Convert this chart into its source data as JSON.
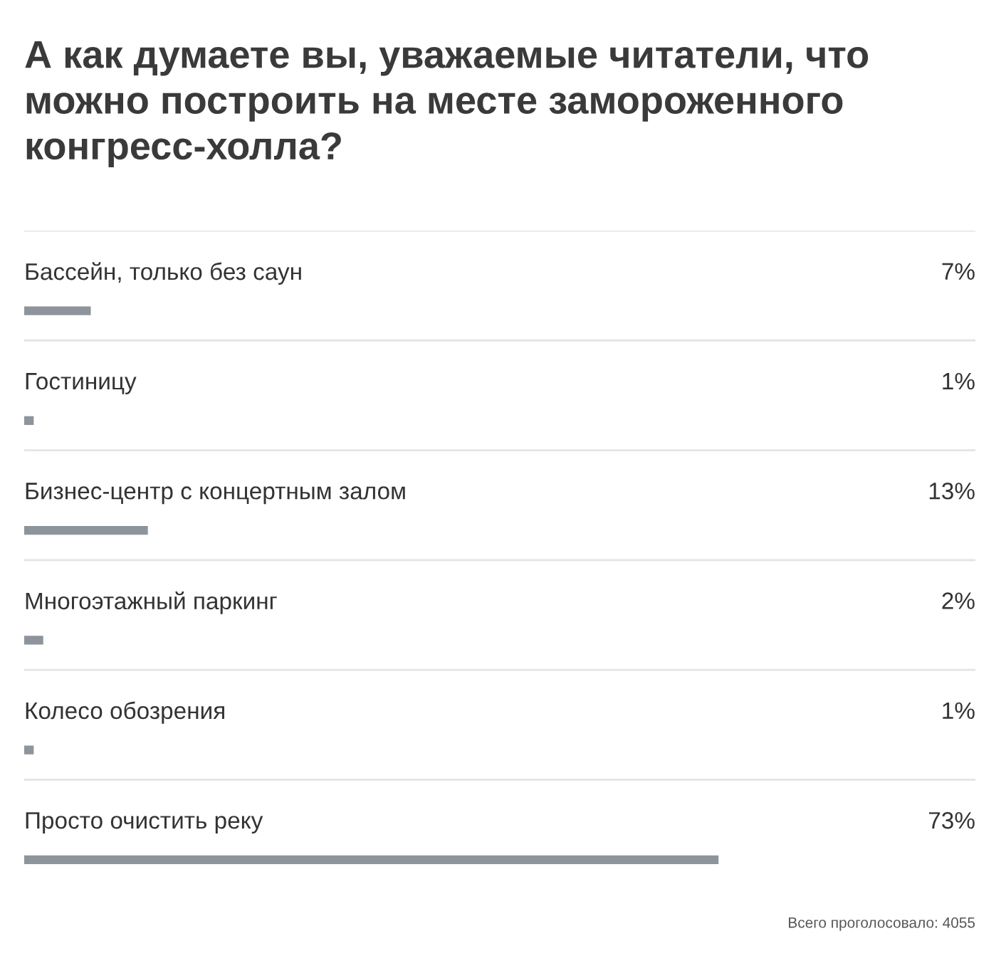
{
  "chart_data": {
    "type": "bar",
    "orientation": "horizontal",
    "title": "А как думаете вы, уважаемые читатели, что можно построить на месте замороженного конгресс-холла?",
    "categories": [
      "Бассейн, только без саун",
      "Гостиницу",
      "Бизнес-центр с концертным залом",
      "Многоэтажный паркинг",
      "Колесо обозрения",
      "Просто очистить реку"
    ],
    "values": [
      7,
      1,
      13,
      2,
      1,
      73
    ],
    "value_labels": [
      "7%",
      "1%",
      "13%",
      "2%",
      "1%",
      "73%"
    ],
    "color": "#8e949b",
    "xlim": [
      0,
      100
    ],
    "legend": false,
    "annotations": [
      "Всего проголосовало: 4055"
    ]
  }
}
